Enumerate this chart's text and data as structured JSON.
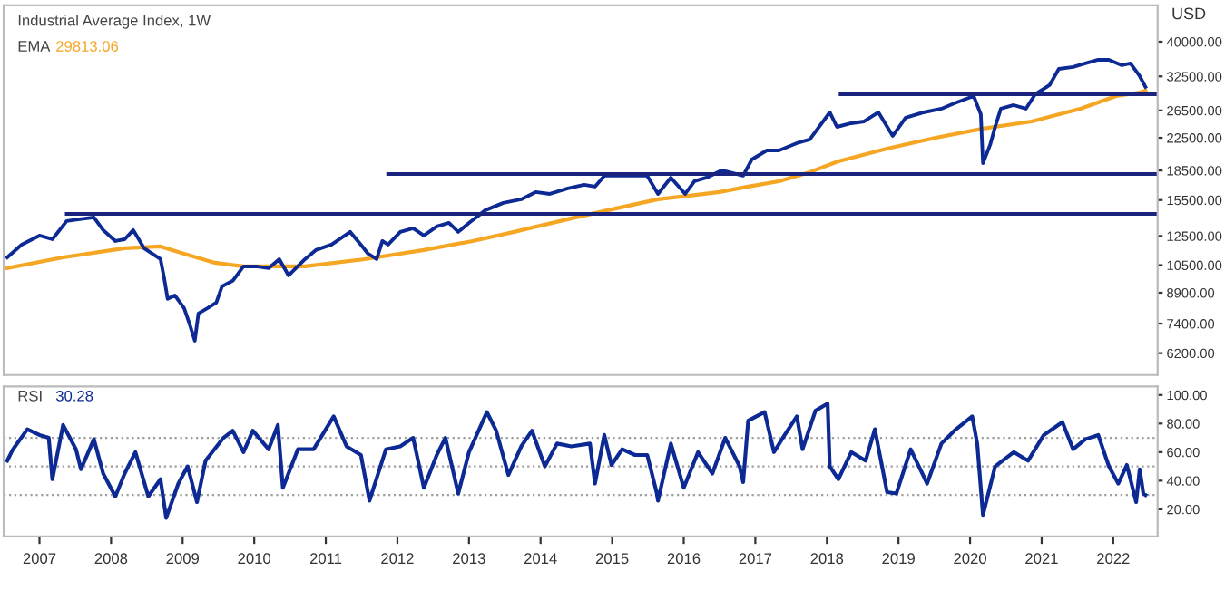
{
  "chart_data": [
    {
      "type": "line",
      "title": "Industrial Average Index, 1W",
      "ylabel": "USD",
      "log": true,
      "tick_labels": "y",
      "annotations": [
        "29813.06"
      ],
      "xlim": [
        2006.5,
        2022.62
      ],
      "ylim": [
        5440,
        49700
      ],
      "yticks": [
        {
          "value": 6200,
          "label": "6200.00"
        },
        {
          "value": 7400,
          "label": "7400.00"
        },
        {
          "value": 8900,
          "label": "8900.00"
        },
        {
          "value": 10500,
          "label": "10500.00"
        },
        {
          "value": 12500,
          "label": "12500.00"
        },
        {
          "value": 15500,
          "label": "15500.00"
        },
        {
          "value": 18500,
          "label": "18500.00"
        },
        {
          "value": 22500,
          "label": "22500.00"
        },
        {
          "value": 26500,
          "label": "26500.00"
        },
        {
          "value": 32500,
          "label": "32500.00"
        },
        {
          "value": 40000,
          "label": "40000.00"
        }
      ],
      "series": [
        {
          "type": "line",
          "color": "#f5a623",
          "name": "EMA",
          "x": [
            2006.55,
            2007.33,
            2008.19,
            2008.69,
            2009.02,
            2009.45,
            2009.85,
            2010.71,
            2011.54,
            2012.37,
            2013.05,
            2013.63,
            2014.49,
            2015.06,
            2015.64,
            2016.5,
            2016.9,
            2017.33,
            2017.76,
            2018.16,
            2018.84,
            2019.52,
            2020.18,
            2020.86,
            2021.54,
            2022.04,
            2022.37,
            2022.45
          ],
          "values": [
            10310,
            11000,
            11620,
            11740,
            11240,
            10650,
            10420,
            10420,
            10880,
            11490,
            12130,
            12810,
            13970,
            14750,
            15570,
            16260,
            16800,
            17350,
            18320,
            19550,
            21090,
            22510,
            23770,
            24820,
            26780,
            28890,
            29520,
            29840
          ]
        },
        {
          "type": "line",
          "color": "#0d2a94",
          "x": [
            2006.55,
            2006.75,
            2007.0,
            2007.18,
            2007.38,
            2007.56,
            2007.76,
            2007.89,
            2008.06,
            2008.19,
            2008.31,
            2008.46,
            2008.69,
            2008.74,
            2008.79,
            2008.89,
            2009.02,
            2009.09,
            2009.17,
            2009.22,
            2009.35,
            2009.47,
            2009.55,
            2009.7,
            2009.85,
            2010.03,
            2010.2,
            2010.35,
            2010.48,
            2010.71,
            2010.86,
            2011.08,
            2011.34,
            2011.49,
            2011.59,
            2011.71,
            2011.79,
            2011.87,
            2012.04,
            2012.22,
            2012.37,
            2012.55,
            2012.72,
            2012.85,
            2013.0,
            2013.23,
            2013.48,
            2013.73,
            2013.93,
            2014.13,
            2014.38,
            2014.61,
            2014.76,
            2014.89,
            2015.14,
            2015.49,
            2015.64,
            2015.82,
            2016.02,
            2016.15,
            2016.32,
            2016.53,
            2016.83,
            2016.95,
            2017.16,
            2017.33,
            2017.58,
            2017.76,
            2018.04,
            2018.14,
            2018.34,
            2018.52,
            2018.72,
            2018.92,
            2019.1,
            2019.35,
            2019.6,
            2019.78,
            2020.05,
            2020.15,
            2020.18,
            2020.28,
            2020.35,
            2020.43,
            2020.61,
            2020.78,
            2020.91,
            2021.11,
            2021.24,
            2021.44,
            2021.61,
            2021.79,
            2021.94,
            2022.12,
            2022.24,
            2022.37,
            2022.45
          ],
          "values": [
            11000,
            11870,
            12530,
            12260,
            13670,
            13820,
            13970,
            12950,
            12130,
            12260,
            12950,
            11620,
            10880,
            9760,
            8580,
            8760,
            8120,
            7450,
            6680,
            7860,
            8120,
            8390,
            9250,
            9560,
            10420,
            10420,
            10310,
            10880,
            9870,
            10880,
            11490,
            11870,
            12810,
            11870,
            11240,
            10880,
            12130,
            11870,
            12810,
            13090,
            12530,
            13230,
            13520,
            12810,
            13520,
            14590,
            15240,
            15570,
            16260,
            16080,
            16620,
            16980,
            16800,
            17930,
            17930,
            17930,
            16080,
            17730,
            16080,
            17350,
            17730,
            18520,
            17930,
            19760,
            20860,
            20860,
            21790,
            22270,
            26200,
            24020,
            24550,
            24820,
            26200,
            22760,
            25370,
            26200,
            26780,
            27660,
            28890,
            25920,
            19340,
            21560,
            24020,
            26780,
            27360,
            26780,
            29200,
            30830,
            33990,
            34370,
            35120,
            35890,
            35890,
            34740,
            35120,
            32550,
            30500
          ]
        },
        {
          "type": "line",
          "color": "#1a237e",
          "x": [
            2007.38,
            2022.62
          ],
          "values": [
            14270,
            14270
          ]
        },
        {
          "type": "line",
          "color": "#1a237e",
          "x": [
            2011.87,
            2022.62
          ],
          "values": [
            18120,
            18120
          ]
        },
        {
          "type": "line",
          "color": "#1a237e",
          "x": [
            2018.19,
            2022.62
          ],
          "values": [
            29200,
            29200
          ]
        }
      ]
    },
    {
      "type": "line",
      "annotations": [
        "30.28"
      ],
      "xlim": [
        2006.5,
        2022.62
      ],
      "ylim": [
        1,
        106
      ],
      "xticks": [
        2007,
        2008,
        2009,
        2010,
        2011,
        2012,
        2013,
        2014,
        2015,
        2016,
        2017,
        2018,
        2019,
        2020,
        2021,
        2022
      ],
      "yticks": [
        {
          "value": 20,
          "label": "20.00"
        },
        {
          "value": 40,
          "label": "40.00"
        },
        {
          "value": 60,
          "label": "60.00"
        },
        {
          "value": 80,
          "label": "80.00"
        },
        {
          "value": 100,
          "label": "100.00"
        }
      ],
      "ref_lines": [
        {
          "axis": "y",
          "value": 70,
          "color": "#9e9e9e",
          "line_style": "dotted"
        },
        {
          "axis": "y",
          "value": 50,
          "color": "#9e9e9e",
          "line_style": "dotted"
        },
        {
          "axis": "y",
          "value": 30,
          "color": "#9e9e9e",
          "line_style": "dotted"
        }
      ],
      "series": [
        {
          "type": "line",
          "name": "RSI",
          "color": "#0d2a94",
          "x": [
            2006.55,
            2006.63,
            2006.83,
            2007.0,
            2007.13,
            2007.18,
            2007.33,
            2007.51,
            2007.58,
            2007.76,
            2007.89,
            2008.06,
            2008.19,
            2008.34,
            2008.52,
            2008.69,
            2008.77,
            2008.94,
            2009.07,
            2009.2,
            2009.32,
            2009.57,
            2009.7,
            2009.85,
            2009.98,
            2010.2,
            2010.33,
            2010.4,
            2010.61,
            2010.83,
            2011.11,
            2011.29,
            2011.49,
            2011.61,
            2011.84,
            2012.04,
            2012.22,
            2012.37,
            2012.55,
            2012.67,
            2012.85,
            2013.0,
            2013.25,
            2013.38,
            2013.55,
            2013.73,
            2013.88,
            2014.06,
            2014.23,
            2014.43,
            2014.69,
            2014.76,
            2014.89,
            2014.99,
            2015.14,
            2015.32,
            2015.49,
            2015.62,
            2015.64,
            2015.82,
            2016.0,
            2016.2,
            2016.4,
            2016.58,
            2016.78,
            2016.83,
            2016.9,
            2017.13,
            2017.26,
            2017.41,
            2017.58,
            2017.66,
            2017.84,
            2018.01,
            2018.04,
            2018.16,
            2018.34,
            2018.54,
            2018.67,
            2018.84,
            2018.97,
            2019.17,
            2019.4,
            2019.6,
            2019.78,
            2020.03,
            2020.1,
            2020.18,
            2020.35,
            2020.61,
            2020.81,
            2021.03,
            2021.29,
            2021.44,
            2021.61,
            2021.79,
            2021.94,
            2022.07,
            2022.19,
            2022.32,
            2022.37,
            2022.42,
            2022.45
          ],
          "values": [
            54,
            62,
            76,
            72,
            70,
            41,
            79,
            62,
            48,
            69,
            45,
            29,
            45,
            60,
            29,
            41,
            14,
            38,
            50,
            25,
            54,
            70,
            75,
            60,
            75,
            62,
            79,
            35,
            62,
            62,
            85,
            64,
            58,
            26,
            62,
            64,
            70,
            35,
            58,
            70,
            31,
            60,
            88,
            75,
            44,
            64,
            75,
            50,
            66,
            64,
            66,
            38,
            72,
            51,
            62,
            58,
            58,
            32,
            26,
            66,
            35,
            60,
            45,
            70,
            50,
            39,
            82,
            88,
            60,
            72,
            85,
            62,
            89,
            94,
            50,
            41,
            60,
            54,
            76,
            32,
            31,
            62,
            38,
            66,
            75,
            85,
            66,
            16,
            50,
            60,
            54,
            72,
            81,
            62,
            69,
            72,
            50,
            38,
            51,
            25,
            48,
            31,
            30
          ]
        }
      ]
    }
  ]
}
